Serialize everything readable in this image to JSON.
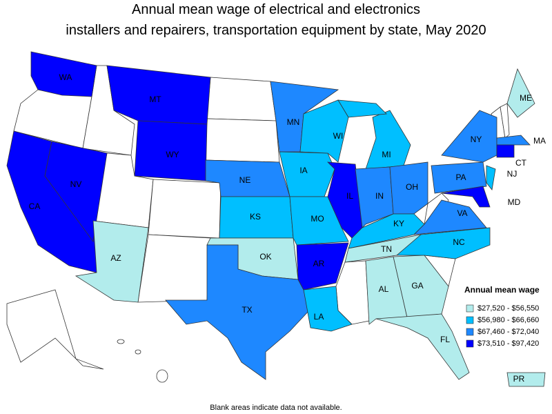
{
  "title": "Annual mean wage of electrical and electronics installers and repairers, transportation equipment by state, May 2020",
  "legend": {
    "title": "Annual mean wage",
    "classes": [
      {
        "label": "$27,520 - $56,550",
        "color": "#b2ecec",
        "states": [
          "AZ",
          "OK",
          "TN",
          "AL",
          "GA",
          "FL",
          "ME",
          "PR"
        ]
      },
      {
        "label": "$56,980 - $66,660",
        "color": "#00bfff",
        "states": [
          "KS",
          "MO",
          "IA",
          "WI",
          "MI",
          "KY",
          "LA",
          "NC",
          "NJ"
        ]
      },
      {
        "label": "$67,460 - $72,040",
        "color": "#1e88ff",
        "states": [
          "MN",
          "NE",
          "TX",
          "IN",
          "OH",
          "PA",
          "NY",
          "VA",
          "MA"
        ]
      },
      {
        "label": "$73,510 - $97,420",
        "color": "#0000ff",
        "states": [
          "WA",
          "MT",
          "WY",
          "CA",
          "NV",
          "IL",
          "AR",
          "MD",
          "CT"
        ]
      }
    ]
  },
  "footnote": "Blank areas indicate data not available."
}
